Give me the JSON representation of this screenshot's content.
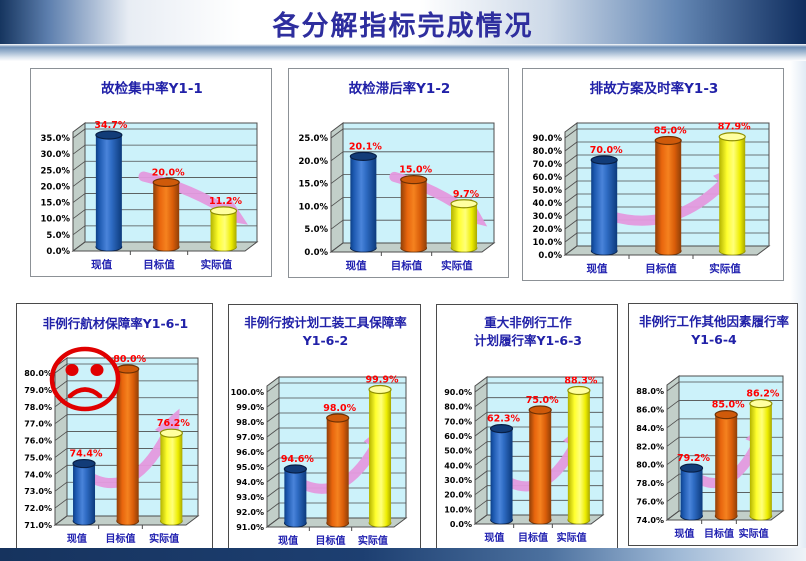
{
  "slide": {
    "title": "各分解指标完成情况"
  },
  "colors": {
    "title_navy": "#2E2E9E",
    "chart_title_navy": "#2121A8",
    "axis_label_navy": "#2121B0",
    "data_label_red": "#FF0000",
    "plot_bg_cyan": "#CCF2FA",
    "wall_gray": "#C2CFC9",
    "grid_gray": "#4d4d4d",
    "arrow_pink": "#E49ADF",
    "sad_face_red": "#E00000",
    "bar_blue": "#1E5FBF",
    "bar_orange": "#E8650D",
    "bar_yellow": "#FFFF00",
    "bottom_bar_navy": "#1C3A6B"
  },
  "chart_data": [
    {
      "id": "Y1-1",
      "type": "bar",
      "title_lines": [
        "故检集中率Y1-1"
      ],
      "categories": [
        "现值",
        "目标值",
        "实际值"
      ],
      "values": [
        34.7,
        20.0,
        11.2
      ],
      "value_labels": [
        "34.7%",
        "20.0%",
        "11.2%"
      ],
      "ylim": [
        0,
        35
      ],
      "tick_labels": [
        "35.0%",
        "30.0%",
        "25.0%",
        "20.0%",
        "15.0%",
        "10.0%",
        "5.0%",
        "0.0%"
      ],
      "arrow": "down",
      "annotation": null
    },
    {
      "id": "Y1-2",
      "type": "bar",
      "title_lines": [
        "故检滞后率Y1-2"
      ],
      "categories": [
        "现值",
        "目标值",
        "实际值"
      ],
      "values": [
        20.1,
        15.0,
        9.7
      ],
      "value_labels": [
        "20.1%",
        "15.0%",
        "9.7%"
      ],
      "ylim": [
        0,
        25
      ],
      "tick_labels": [
        "25.0%",
        "20.0%",
        "15.0%",
        "10.0%",
        "5.0%",
        "0.0%"
      ],
      "arrow": "down",
      "annotation": null
    },
    {
      "id": "Y1-3",
      "type": "bar",
      "title_lines": [
        "排故方案及时率Y1-3"
      ],
      "categories": [
        "现值",
        "目标值",
        "实际值"
      ],
      "values": [
        70.0,
        85.0,
        87.9
      ],
      "value_labels": [
        "70.0%",
        "85.0%",
        "87.9%"
      ],
      "ylim": [
        0,
        90
      ],
      "tick_labels": [
        "90.0%",
        "80.0%",
        "70.0%",
        "60.0%",
        "50.0%",
        "40.0%",
        "30.0%",
        "20.0%",
        "10.0%",
        "0.0%"
      ],
      "arrow": "up",
      "annotation": null
    },
    {
      "id": "Y1-6-1",
      "type": "bar",
      "title_lines": [
        "非例行航材保障率Y1-6-1"
      ],
      "categories": [
        "现值",
        "目标值",
        "实际值"
      ],
      "values": [
        74.4,
        80.0,
        76.2
      ],
      "value_labels": [
        "74.4%",
        "80.0%",
        "76.2%"
      ],
      "ylim": [
        71,
        80
      ],
      "tick_labels": [
        "80.0%",
        "79.0%",
        "78.0%",
        "77.0%",
        "76.0%",
        "75.0%",
        "74.0%",
        "73.0%",
        "72.0%",
        "71.0%"
      ],
      "arrow": "up",
      "annotation": "sad-face"
    },
    {
      "id": "Y1-6-2",
      "type": "bar",
      "title_lines": [
        "非例行按计划工装工具保障率",
        "Y1-6-2"
      ],
      "categories": [
        "现值",
        "目标值",
        "实际值"
      ],
      "values": [
        94.6,
        98.0,
        99.9
      ],
      "value_labels": [
        "94.6%",
        "98.0%",
        "99.9%"
      ],
      "ylim": [
        91,
        100
      ],
      "tick_labels": [
        "100.0%",
        "99.0%",
        "98.0%",
        "97.0%",
        "96.0%",
        "95.0%",
        "94.0%",
        "93.0%",
        "92.0%",
        "91.0%"
      ],
      "arrow": "up",
      "annotation": null
    },
    {
      "id": "Y1-6-3",
      "type": "bar",
      "title_lines": [
        "重大非例行工作",
        "计划履行率Y1-6-3"
      ],
      "categories": [
        "现值",
        "目标值",
        "实际值"
      ],
      "values": [
        62.3,
        75.0,
        88.3
      ],
      "value_labels": [
        "62.3%",
        "75.0%",
        "88.3%"
      ],
      "ylim": [
        0,
        90
      ],
      "tick_labels": [
        "90.0%",
        "80.0%",
        "70.0%",
        "60.0%",
        "50.0%",
        "40.0%",
        "30.0%",
        "20.0%",
        "10.0%",
        "0.0%"
      ],
      "arrow": "up",
      "annotation": null
    },
    {
      "id": "Y1-6-4",
      "type": "bar",
      "title_lines": [
        "非例行工作其他因素履行率",
        "Y1-6-4"
      ],
      "categories": [
        "现值",
        "目标值",
        "实际值"
      ],
      "values": [
        79.2,
        85.0,
        86.2
      ],
      "value_labels": [
        "79.2%",
        "85.0%",
        "86.2%"
      ],
      "ylim": [
        74,
        88
      ],
      "tick_labels": [
        "88.0%",
        "86.0%",
        "84.0%",
        "82.0%",
        "80.0%",
        "78.0%",
        "76.0%",
        "74.0%"
      ],
      "arrow": "up",
      "annotation": null
    }
  ]
}
